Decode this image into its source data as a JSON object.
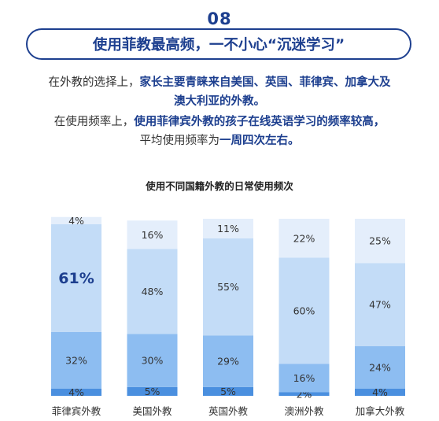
{
  "header": {
    "section_number": "08",
    "headline": "使用菲教最高频，一不小心“沉迷学习”"
  },
  "summary": {
    "line1_plain": "在外教的选择上，",
    "line1_highlight": "家长主要青睐来自美国、英国、菲律宾、加拿大及",
    "line2_highlight": "澳大利亚的外教。",
    "line3_plain": "在使用频率上，",
    "line3_highlight": "使用菲律宾外教的孩子在线英语学习的频率较高，",
    "line4_plain": "平均使用频率为",
    "line4_highlight": "一周四次左右。"
  },
  "colors": {
    "brand": "#1d3f8f",
    "segments": [
      "#4a8fdf",
      "#8dbdf1",
      "#c3dcf7",
      "#e4eefb"
    ]
  },
  "chart_data": {
    "type": "bar",
    "stacked": true,
    "title": "使用不同国籍外教的日常使用频次",
    "categories": [
      "菲律宾外教",
      "美国外教",
      "英国外教",
      "澳洲外教",
      "加拿大外教"
    ],
    "series": [
      {
        "values": [
          4,
          5,
          5,
          2,
          4
        ]
      },
      {
        "values": [
          32,
          30,
          29,
          16,
          24
        ]
      },
      {
        "values": [
          61,
          48,
          55,
          60,
          47
        ]
      },
      {
        "values": [
          4,
          16,
          11,
          22,
          25
        ]
      }
    ],
    "labels": [
      [
        "4%",
        "32%",
        "61%",
        "4%"
      ],
      [
        "5%",
        "30%",
        "48%",
        "16%"
      ],
      [
        "5%",
        "29%",
        "55%",
        "11%"
      ],
      [
        "2%",
        "16%",
        "60%",
        "22%"
      ],
      [
        "4%",
        "24%",
        "47%",
        "25%"
      ]
    ],
    "emphasized_label": "61%",
    "ylim": [
      0,
      100
    ],
    "grid": false,
    "legend": "none"
  }
}
